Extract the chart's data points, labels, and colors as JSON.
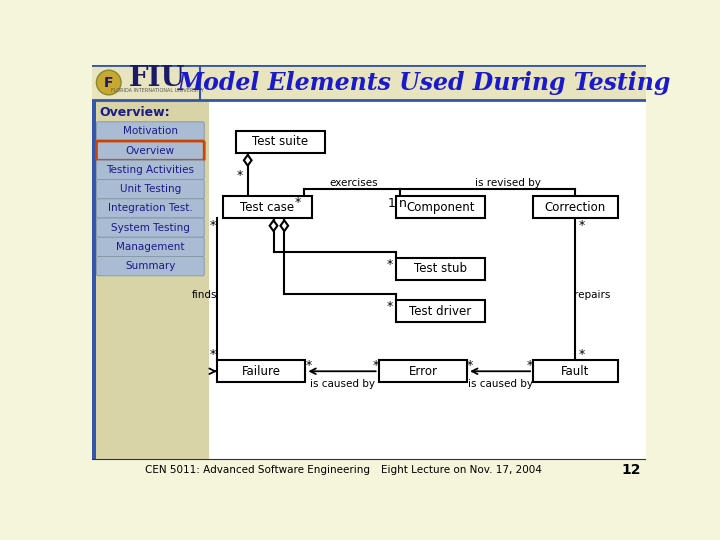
{
  "title": "Model Elements Used During Testing",
  "bg_color": "#f5f5dc",
  "header_bg": "#d4cfa0",
  "sidebar_color": "#d8d4a8",
  "sidebar_blue_edge": "#3355aa",
  "overview_label": "Overview:",
  "nav_items": [
    "Motivation",
    "Overview",
    "Testing Activities",
    "Unit Testing",
    "Integration Test.",
    "System Testing",
    "Management",
    "Summary"
  ],
  "active_item": "Overview",
  "active_border_color": "#cc4400",
  "nav_btn_color": "#aabbd4",
  "nav_text_color": "#1a1a88",
  "footer_left": "CEN 5011: Advanced Software Engineering",
  "footer_right": "Eight Lecture on Nov. 17, 2004",
  "footer_num": "12",
  "title_color": "#1a1acc",
  "title_fontsize": 17
}
